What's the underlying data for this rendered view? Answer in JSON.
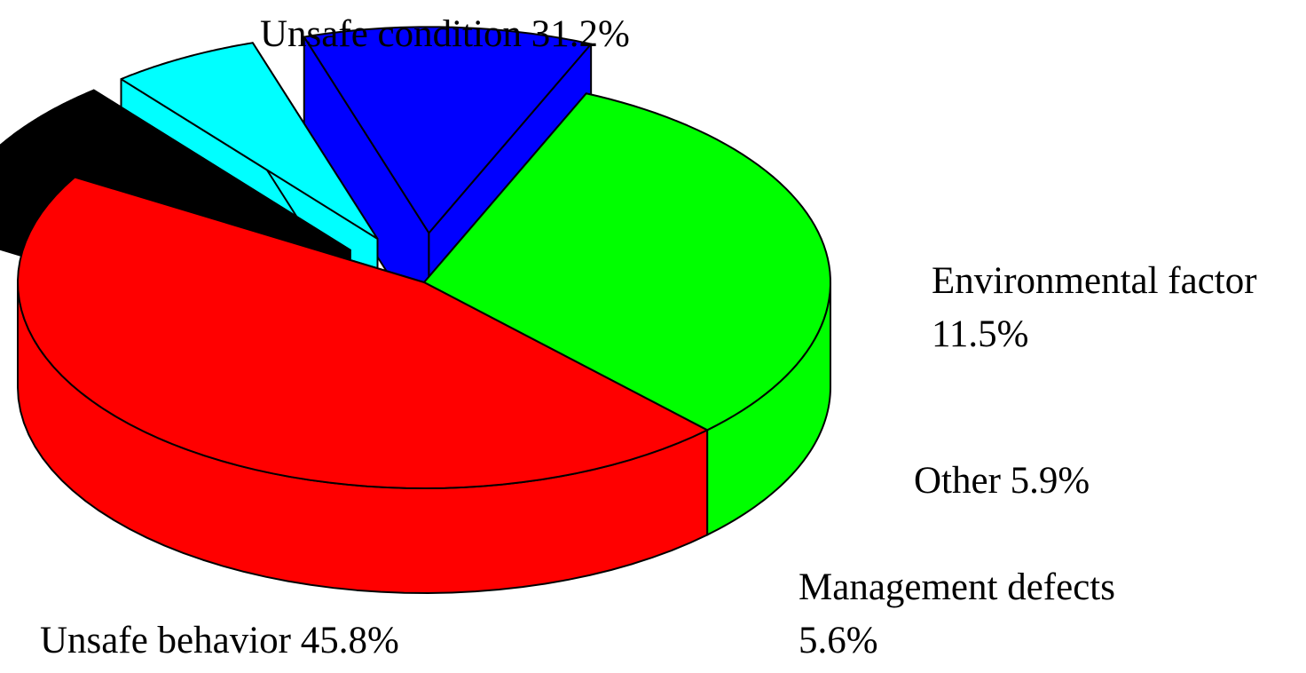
{
  "chart_data": {
    "type": "pie",
    "style": "3d-exploded",
    "title": "",
    "slices": [
      {
        "name": "Unsafe behavior",
        "value": 45.8,
        "label": "45.8%",
        "color": "#FF0000",
        "side_color": "#FF0000",
        "exploded": false
      },
      {
        "name": "Management defects",
        "value": 5.6,
        "label": "5.6%",
        "color": "#000000",
        "side_color": "#000000",
        "exploded": true
      },
      {
        "name": "Other",
        "value": 5.9,
        "label": "5.9%",
        "color": "#00FFFF",
        "side_color": "#00FFFF",
        "exploded": true
      },
      {
        "name": "Environmental factor",
        "value": 11.5,
        "label": "11.5%",
        "color": "#0000FF",
        "side_color": "#0000FF",
        "exploded": true
      },
      {
        "name": "Unsafe condition",
        "value": 31.2,
        "label": "31.2%",
        "color": "#00FF00",
        "side_color": "#00FF00",
        "exploded": false
      }
    ],
    "labels": {
      "unsafe_condition": "Unsafe condition 31.2%",
      "environmental_factor_line1": "Environmental factor",
      "environmental_factor_line2": "11.5%",
      "other": "Other 5.9%",
      "management_defects_line1": "Management defects",
      "management_defects_line2": "5.6%",
      "unsafe_behavior": "Unsafe behavior 45.8%"
    }
  }
}
